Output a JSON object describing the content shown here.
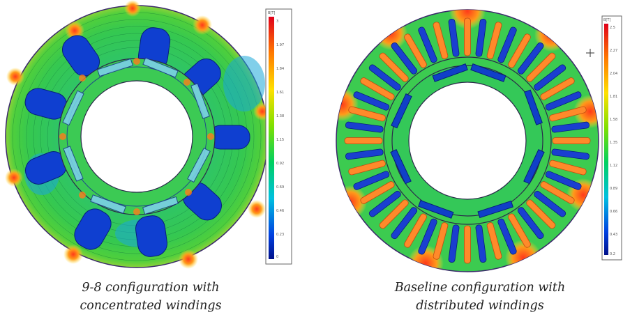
{
  "figures": [
    {
      "id": "concentrated",
      "caption_line1": "9-8 configuration with",
      "caption_line2": "concentrated windings",
      "colorbar": {
        "header": "B[T]",
        "ticks": [
          "3",
          "1.97",
          "1.84",
          "1.61",
          "1.38",
          "1.15",
          "0.92",
          "0.69",
          "0.46",
          "0.23",
          "0"
        ]
      }
    },
    {
      "id": "distributed",
      "caption_line1": "Baseline configuration with",
      "caption_line2": "distributed windings",
      "colorbar": {
        "header": "B[T]",
        "ticks": [
          "2.5",
          "2.27",
          "2.04",
          "1.81",
          "1.58",
          "1.35",
          "1.12",
          "0.89",
          "0.66",
          "0.43",
          "0.2"
        ]
      }
    }
  ]
}
